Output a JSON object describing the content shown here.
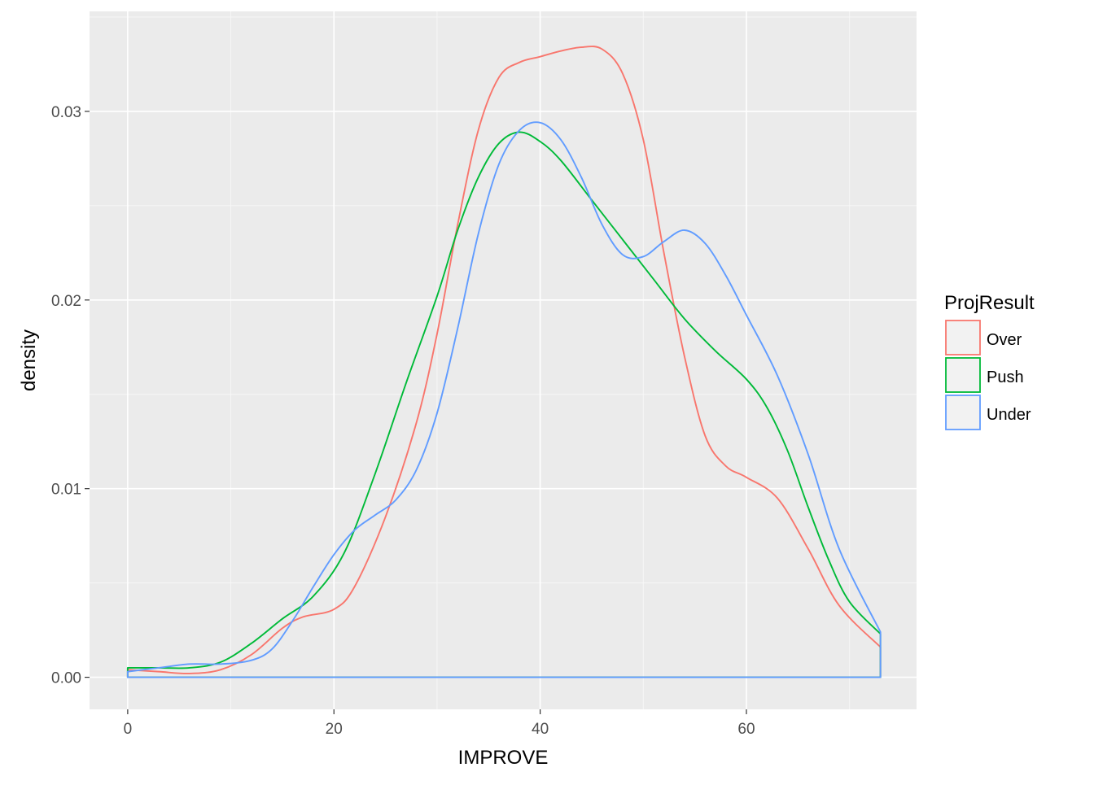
{
  "chart_data": {
    "type": "area",
    "title": "",
    "xlabel": "IMPROVE",
    "ylabel": "density",
    "xlim": [
      -3.7,
      76.5
    ],
    "ylim": [
      -0.0017,
      0.0353
    ],
    "x_ticks": [
      0,
      20,
      40,
      60
    ],
    "x_tick_labels": [
      "0",
      "20",
      "40",
      "60"
    ],
    "y_ticks": [
      0.0,
      0.01,
      0.02,
      0.03
    ],
    "y_tick_labels": [
      "0.00",
      "0.01",
      "0.02",
      "0.03"
    ],
    "grid": true,
    "panel_background": "#ebebeb",
    "legend": {
      "title": "ProjResult",
      "position": "right"
    },
    "series": [
      {
        "name": "Over",
        "color": "#f8766d",
        "x": [
          0,
          3,
          6,
          9,
          12,
          15,
          17,
          20,
          22,
          25,
          28,
          30,
          32,
          34,
          36,
          38,
          40,
          42,
          44,
          46,
          48,
          50,
          52,
          54,
          56,
          58,
          60,
          63,
          66,
          69,
          73
        ],
        "y": [
          0.0004,
          0.0003,
          0.0002,
          0.0004,
          0.0012,
          0.0026,
          0.0032,
          0.0036,
          0.0048,
          0.0085,
          0.0135,
          0.0182,
          0.024,
          0.029,
          0.0318,
          0.0326,
          0.0329,
          0.0332,
          0.0334,
          0.0333,
          0.032,
          0.0285,
          0.0225,
          0.017,
          0.0128,
          0.0112,
          0.0106,
          0.0095,
          0.0068,
          0.0038,
          0.0016
        ]
      },
      {
        "name": "Push",
        "color": "#00ba38",
        "x": [
          0,
          3,
          6,
          9,
          12,
          15,
          18,
          21,
          24,
          27,
          30,
          32,
          34,
          36,
          38,
          40,
          42,
          45,
          48,
          51,
          54,
          57,
          60,
          62,
          64,
          66,
          68,
          70,
          73
        ],
        "y": [
          0.0005,
          0.0005,
          0.0005,
          0.0008,
          0.0018,
          0.0031,
          0.0043,
          0.0066,
          0.0108,
          0.0156,
          0.0202,
          0.0237,
          0.0265,
          0.0283,
          0.0289,
          0.0284,
          0.0274,
          0.0253,
          0.0232,
          0.0211,
          0.019,
          0.0173,
          0.0158,
          0.0143,
          0.012,
          0.009,
          0.0062,
          0.004,
          0.0023
        ]
      },
      {
        "name": "Under",
        "color": "#619cff",
        "x": [
          0,
          3,
          6,
          9,
          12,
          14,
          16,
          18,
          20,
          22,
          24,
          26,
          28,
          30,
          32,
          34,
          36,
          38,
          40,
          42,
          44,
          46,
          48,
          50,
          52,
          54,
          56,
          58,
          60,
          63,
          66,
          69,
          73
        ],
        "y": [
          0.0003,
          0.0005,
          0.0007,
          0.0007,
          0.0009,
          0.0015,
          0.003,
          0.0048,
          0.0065,
          0.0078,
          0.0086,
          0.0094,
          0.011,
          0.014,
          0.0185,
          0.0235,
          0.0272,
          0.029,
          0.0294,
          0.0285,
          0.0265,
          0.024,
          0.0224,
          0.0223,
          0.0231,
          0.0237,
          0.023,
          0.0213,
          0.0192,
          0.016,
          0.0118,
          0.0068,
          0.0024
        ]
      }
    ]
  }
}
